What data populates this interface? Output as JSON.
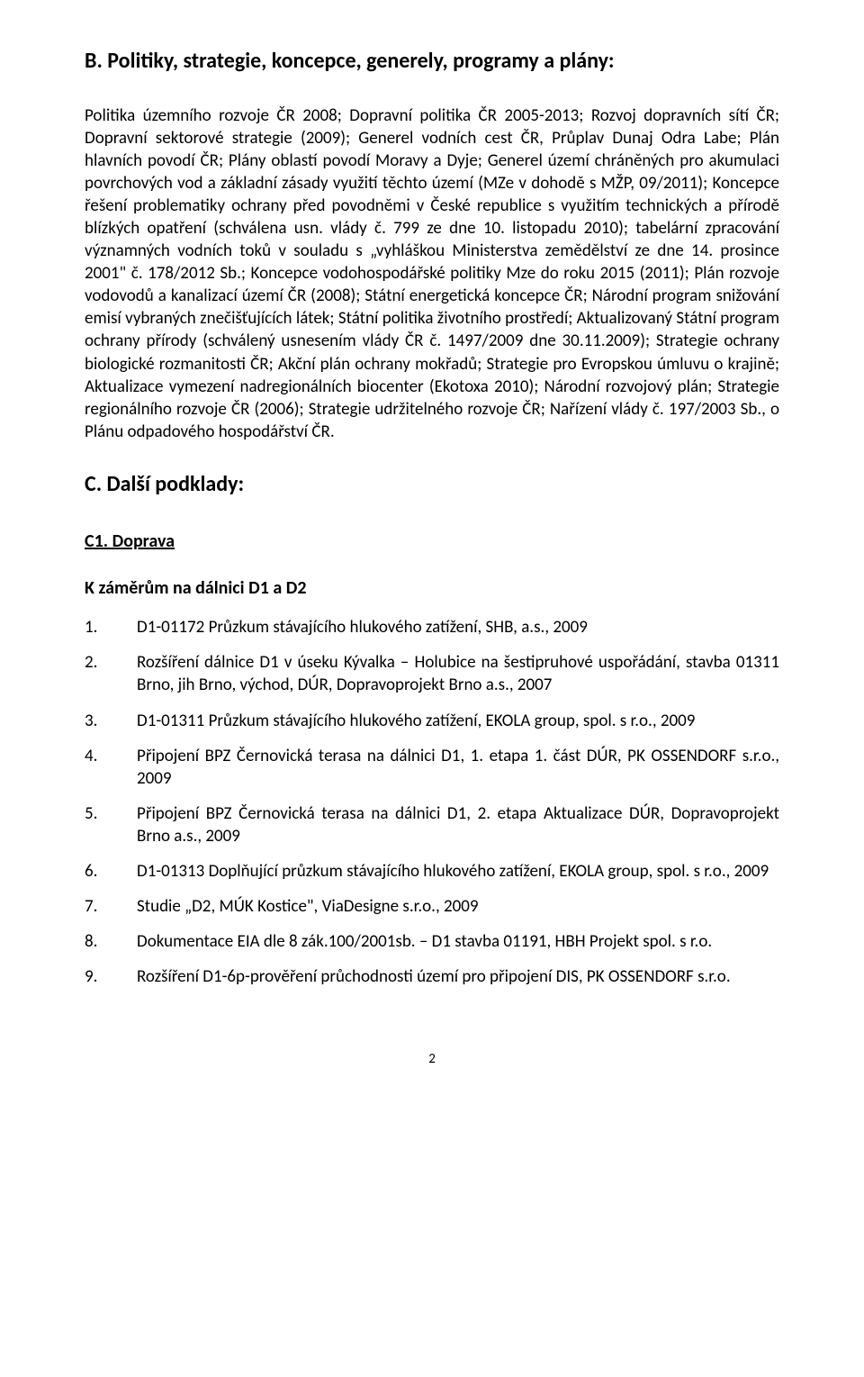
{
  "headingB": "B. Politiky, strategie, koncepce, generely, programy a plány:",
  "paraB": "Politika územního rozvoje ČR 2008; Dopravní politika ČR 2005-2013; Rozvoj dopravních sítí ČR; Dopravní sektorové strategie (2009); Generel vodních cest ČR, Průplav Dunaj Odra Labe; Plán hlavních povodí ČR; Plány oblastí povodí Moravy a Dyje; Generel území chráněných pro akumulaci povrchových vod a základní zásady využití těchto území (MZe v dohodě s MŽP, 09/2011); Koncepce řešení problematiky ochrany před povodněmi v České republice s využitím technických a přírodě blízkých opatření (schválena usn. vlády č. 799 ze dne 10. listopadu 2010); tabelární zpracování významných vodních toků v souladu s „vyhláškou Ministerstva zemědělství ze dne 14. prosince 2001\" č. 178/2012 Sb.; Koncepce vodohospodářské politiky Mze do roku 2015 (2011); Plán rozvoje vodovodů a kanalizací území ČR (2008); Státní energetická koncepce ČR; Národní program snižování emisí vybraných znečišťujících látek; Státní politika životního prostředí; Aktualizovaný Státní program ochrany přírody (schválený usnesením vlády ČR č. 1497/2009 dne 30.11.2009); Strategie ochrany biologické rozmanitosti ČR; Akční plán ochrany mokřadů; Strategie pro Evropskou úmluvu o krajině; Aktualizace vymezení nadregionálních biocenter (Ekotoxa 2010); Národní rozvojový plán; Strategie regionálního rozvoje ČR (2006); Strategie udržitelného rozvoje ČR; Nařízení vlády č. 197/2003 Sb., o Plánu odpadového hospodářství ČR.",
  "headingC": "C. Další podklady:",
  "headingC1": "C1. Doprava",
  "headingK": "K záměrům na dálnici D1 a D2",
  "list": [
    "D1-01172 Průzkum stávajícího hlukového zatížení, SHB, a.s., 2009",
    "Rozšíření dálnice D1 v úseku Kývalka – Holubice na šestipruhové uspořádání, stavba 01311 Brno, jih Brno, východ, DÚR, Dopravoprojekt Brno a.s., 2007",
    "D1-01311 Průzkum stávajícího hlukového zatížení, EKOLA group, spol. s r.o., 2009",
    "Připojení BPZ Černovická terasa na dálnici D1, 1. etapa 1. část DÚR, PK OSSENDORF s.r.o., 2009",
    "Připojení BPZ Černovická terasa na dálnici D1, 2. etapa Aktualizace DÚR, Dopravoprojekt Brno a.s., 2009",
    "D1-01313 Doplňující průzkum stávajícího hlukového zatížení, EKOLA group, spol. s r.o., 2009",
    "Studie „D2, MÚK Kostice\", ViaDesigne s.r.o., 2009",
    "Dokumentace EIA dle 8 zák.100/2001sb. – D1 stavba 01191, HBH Projekt spol. s r.o.",
    "Rozšíření D1-6p-prověření průchodnosti území pro připojení DIS, PK OSSENDORF s.r.o."
  ],
  "pageNumber": "2"
}
